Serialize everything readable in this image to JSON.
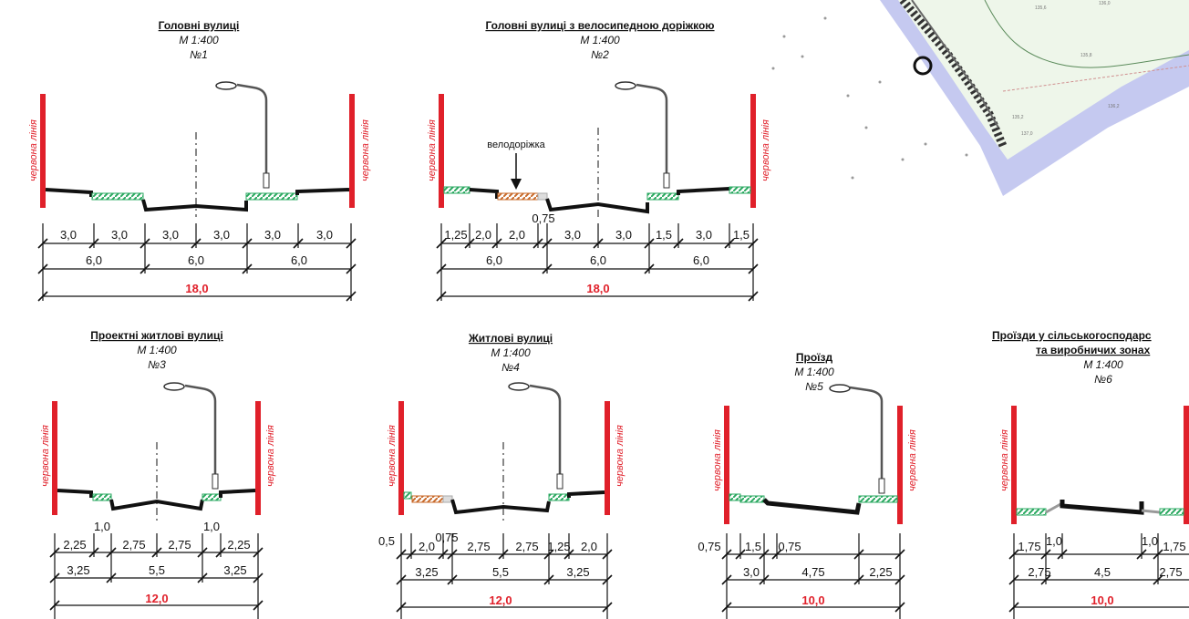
{
  "red_line_label": "червона лінія",
  "bike_lane_label": "велодоріжка",
  "sections": [
    {
      "title": "Головні вулиці",
      "scale": "М 1:400",
      "number": "№1",
      "row1": [
        "3,0",
        "3,0",
        "3,0",
        "3,0",
        "3,0",
        "3,0"
      ],
      "row2": [
        "6,0",
        "6,0",
        "6,0"
      ],
      "total": "18,0"
    },
    {
      "title": "Головні вулиці з велосипедною доріжкою",
      "scale": "М 1:400",
      "number": "№2",
      "row1": [
        "1,25",
        "2,0",
        "2,0",
        "0,75",
        "3,0",
        "3,0",
        "1,5",
        "3,0",
        "1,5"
      ],
      "row2": [
        "6,0",
        "6,0",
        "6,0"
      ],
      "total": "18,0"
    },
    {
      "title": "Проектні житлові вулиці",
      "scale": "М 1:400",
      "number": "№3",
      "row1": [
        "2,25",
        "2,75",
        "2,75",
        "2,25"
      ],
      "row1_extra": [
        "1,0",
        "1,0"
      ],
      "row2": [
        "3,25",
        "5,5",
        "3,25"
      ],
      "total": "12,0"
    },
    {
      "title": "Житлові вулиці",
      "scale": "М 1:400",
      "number": "№4",
      "row1": [
        "0,5",
        "2,0",
        "0,75",
        "2,75",
        "2,75",
        "1,25",
        "2,0"
      ],
      "row2": [
        "3,25",
        "5,5",
        "3,25"
      ],
      "total": "12,0"
    },
    {
      "title": "Проїзд",
      "scale": "М 1:400",
      "number": "№5",
      "row1": [
        "0,75",
        "1,5",
        "0,75"
      ],
      "row2": [
        "3,0",
        "4,75",
        "2,25"
      ],
      "total": "10,0"
    },
    {
      "title_line1": "Проїзди у сільськогосподарс",
      "title_line2": "та виробничих зонах",
      "scale": "М 1:400",
      "number": "№6",
      "row1": [
        "1,75",
        "1,0",
        "1,0",
        "1,75"
      ],
      "row2": [
        "2,75",
        "4,5",
        "2,75"
      ],
      "total": "10,0"
    }
  ],
  "map_labels": [
    "135,6",
    "136,0",
    "135,8",
    "136,2",
    "135,2",
    "137,0"
  ],
  "colors": {
    "red_line": "#e0202a",
    "green_hatch": "#2aa860",
    "bike_lane": "#c86a2a",
    "map_bg": "#c5c9f0"
  }
}
